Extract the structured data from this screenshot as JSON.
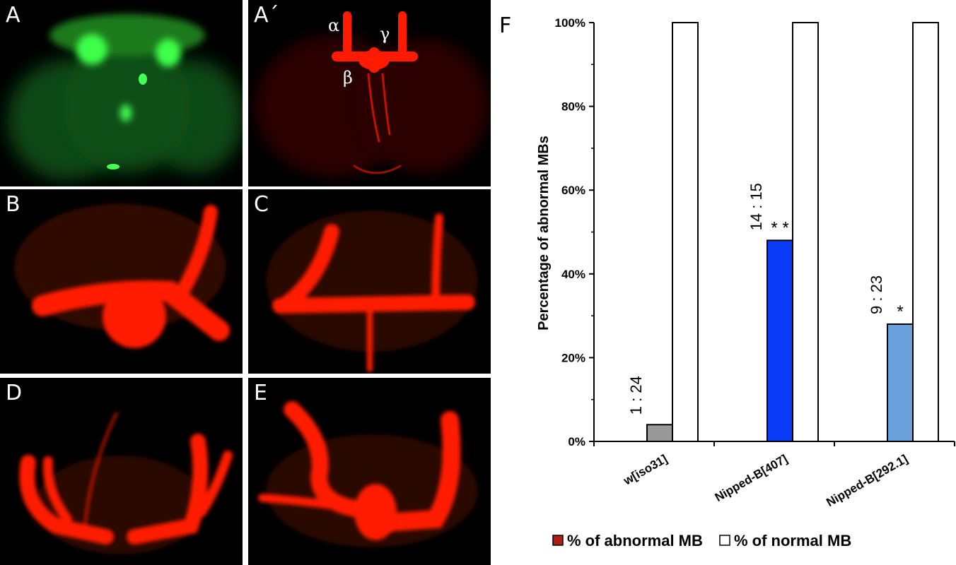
{
  "panels": {
    "A": {
      "label": "A"
    },
    "A2": {
      "label": "A´",
      "alpha": "α",
      "gamma": "γ",
      "beta": "β"
    },
    "B": {
      "label": "B"
    },
    "C": {
      "label": "C"
    },
    "D": {
      "label": "D"
    },
    "E": {
      "label": "E"
    }
  },
  "colors": {
    "green_fluor": "#22dd33",
    "red_fluor": "#ff1a00",
    "bar_wiso31": "#999999",
    "bar_407": "#0a3cf5",
    "bar_292": "#6aa0dc",
    "normal": "#ffffff",
    "legend_abnormal": "#b01e10"
  },
  "chart_data": {
    "type": "bar",
    "panel_label": "F",
    "ylabel": "Percentage of abnormal MBs",
    "xlabel": "",
    "ylim": [
      0,
      100
    ],
    "yticks": [
      "0%",
      "20%",
      "40%",
      "60%",
      "80%",
      "100%"
    ],
    "categories": [
      "w[iso31]",
      "Nipped-B[407]",
      "Nipped-B[292.1]"
    ],
    "series": [
      {
        "name": "% of abnormal MB",
        "values": [
          4,
          48,
          28
        ]
      },
      {
        "name": "% of normal MB",
        "values": [
          100,
          100,
          100
        ]
      }
    ],
    "ratio_labels": [
      "1 : 24",
      "14 : 15",
      "9 : 23"
    ],
    "significance": [
      "",
      "* *",
      "*"
    ],
    "legend": {
      "placement": "bottom",
      "entries": [
        "% of abnormal MB",
        "% of normal MB"
      ]
    }
  }
}
